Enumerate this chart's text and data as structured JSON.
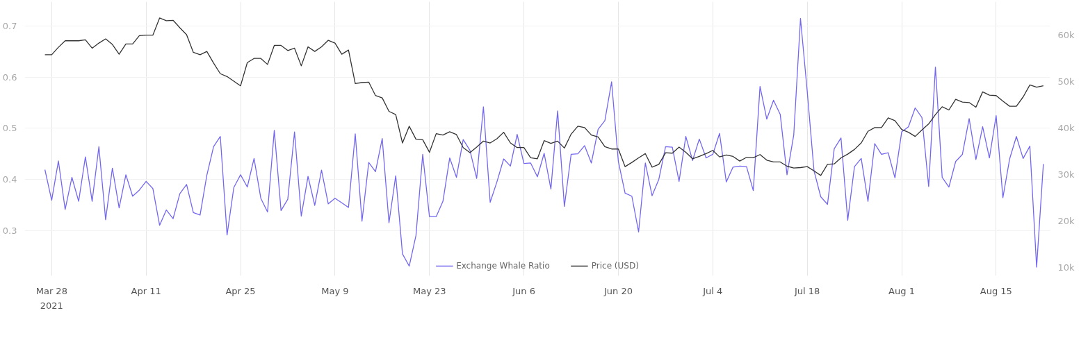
{
  "chart_data": {
    "type": "line",
    "x": [
      "2021-03-27",
      "2021-03-28",
      "2021-03-29",
      "2021-03-30",
      "2021-03-31",
      "2021-04-01",
      "2021-04-02",
      "2021-04-03",
      "2021-04-04",
      "2021-04-05",
      "2021-04-06",
      "2021-04-07",
      "2021-04-08",
      "2021-04-09",
      "2021-04-10",
      "2021-04-11",
      "2021-04-12",
      "2021-04-13",
      "2021-04-14",
      "2021-04-15",
      "2021-04-16",
      "2021-04-17",
      "2021-04-18",
      "2021-04-19",
      "2021-04-20",
      "2021-04-21",
      "2021-04-22",
      "2021-04-23",
      "2021-04-24",
      "2021-04-25",
      "2021-04-26",
      "2021-04-27",
      "2021-04-28",
      "2021-04-29",
      "2021-04-30",
      "2021-05-01",
      "2021-05-02",
      "2021-05-03",
      "2021-05-04",
      "2021-05-05",
      "2021-05-06",
      "2021-05-07",
      "2021-05-08",
      "2021-05-09",
      "2021-05-10",
      "2021-05-11",
      "2021-05-12",
      "2021-05-13",
      "2021-05-14",
      "2021-05-15",
      "2021-05-16",
      "2021-05-17",
      "2021-05-18",
      "2021-05-19",
      "2021-05-20",
      "2021-05-21",
      "2021-05-22",
      "2021-05-23",
      "2021-05-24",
      "2021-05-25",
      "2021-05-26",
      "2021-05-27",
      "2021-05-28",
      "2021-05-29",
      "2021-05-30",
      "2021-05-31",
      "2021-06-01",
      "2021-06-02",
      "2021-06-03",
      "2021-06-04",
      "2021-06-05",
      "2021-06-06",
      "2021-06-07",
      "2021-06-08",
      "2021-06-09",
      "2021-06-10",
      "2021-06-11",
      "2021-06-12",
      "2021-06-13",
      "2021-06-14",
      "2021-06-15",
      "2021-06-16",
      "2021-06-17",
      "2021-06-18",
      "2021-06-19",
      "2021-06-20",
      "2021-06-21",
      "2021-06-22",
      "2021-06-23",
      "2021-06-24",
      "2021-06-25",
      "2021-06-26",
      "2021-06-27",
      "2021-06-28",
      "2021-06-29",
      "2021-06-30",
      "2021-07-01",
      "2021-07-02",
      "2021-07-03",
      "2021-07-04",
      "2021-07-05",
      "2021-07-06",
      "2021-07-07",
      "2021-07-08",
      "2021-07-09",
      "2021-07-10",
      "2021-07-11",
      "2021-07-12",
      "2021-07-13",
      "2021-07-14",
      "2021-07-15",
      "2021-07-16",
      "2021-07-17",
      "2021-07-18",
      "2021-07-19",
      "2021-07-20",
      "2021-07-21",
      "2021-07-22",
      "2021-07-23",
      "2021-07-24",
      "2021-07-25",
      "2021-07-26",
      "2021-07-27",
      "2021-07-28",
      "2021-07-29",
      "2021-07-30",
      "2021-07-31",
      "2021-08-01",
      "2021-08-02",
      "2021-08-03",
      "2021-08-04",
      "2021-08-05",
      "2021-08-06",
      "2021-08-07",
      "2021-08-08",
      "2021-08-09",
      "2021-08-10",
      "2021-08-11",
      "2021-08-12",
      "2021-08-13",
      "2021-08-14",
      "2021-08-15",
      "2021-08-16",
      "2021-08-17",
      "2021-08-18",
      "2021-08-19",
      "2021-08-20",
      "2021-08-21",
      "2021-08-22"
    ],
    "series": [
      {
        "name": "Exchange Whale Ratio",
        "color": "#7367f0",
        "values": [
          0.419,
          0.359,
          0.436,
          0.341,
          0.404,
          0.357,
          0.444,
          0.357,
          0.464,
          0.321,
          0.422,
          0.344,
          0.409,
          0.367,
          0.379,
          0.396,
          0.382,
          0.31,
          0.34,
          0.323,
          0.372,
          0.39,
          0.335,
          0.33,
          0.408,
          0.464,
          0.484,
          0.291,
          0.384,
          0.409,
          0.385,
          0.441,
          0.363,
          0.336,
          0.496,
          0.339,
          0.361,
          0.493,
          0.328,
          0.406,
          0.349,
          0.418,
          0.352,
          0.363,
          0.354,
          0.345,
          0.489,
          0.318,
          0.433,
          0.415,
          0.48,
          0.315,
          0.407,
          0.254,
          0.23,
          0.29,
          0.449,
          0.327,
          0.327,
          0.357,
          0.442,
          0.404,
          0.478,
          0.457,
          0.402,
          0.542,
          0.355,
          0.395,
          0.44,
          0.426,
          0.488,
          0.431,
          0.432,
          0.405,
          0.451,
          0.381,
          0.534,
          0.347,
          0.449,
          0.45,
          0.466,
          0.432,
          0.498,
          0.515,
          0.591,
          0.435,
          0.373,
          0.367,
          0.297,
          0.432,
          0.368,
          0.4,
          0.464,
          0.463,
          0.396,
          0.484,
          0.437,
          0.479,
          0.442,
          0.449,
          0.49,
          0.395,
          0.424,
          0.426,
          0.425,
          0.378,
          0.582,
          0.518,
          0.555,
          0.527,
          0.409,
          0.487,
          0.715,
          0.572,
          0.417,
          0.366,
          0.351,
          0.46,
          0.481,
          0.32,
          0.425,
          0.441,
          0.357,
          0.47,
          0.449,
          0.452,
          0.403,
          0.493,
          0.503,
          0.54,
          0.521,
          0.386,
          0.62,
          0.404,
          0.385,
          0.435,
          0.449,
          0.519,
          0.439,
          0.503,
          0.442,
          0.525,
          0.364,
          0.44,
          0.484,
          0.441,
          0.465,
          0.228,
          0.43
        ]
      },
      {
        "name": "Price (USD)",
        "color": "#333333",
        "axis": "y2",
        "values": [
          55800,
          55800,
          57400,
          58800,
          58800,
          58800,
          59000,
          57200,
          58300,
          59200,
          58000,
          55900,
          58100,
          58100,
          59900,
          60000,
          60000,
          63700,
          63100,
          63200,
          61600,
          60100,
          56300,
          55800,
          56500,
          54000,
          51700,
          51100,
          50100,
          49100,
          54100,
          55000,
          55000,
          53700,
          57800,
          57800,
          56700,
          57200,
          53400,
          57500,
          56500,
          57500,
          58900,
          58300,
          55900,
          56800,
          49600,
          49800,
          49900,
          47000,
          46500,
          43600,
          42900,
          36800,
          40400,
          37600,
          37500,
          34800,
          38800,
          38500,
          39200,
          38600,
          35800,
          34700,
          35900,
          37200,
          36800,
          37700,
          39100,
          36800,
          35800,
          35800,
          33600,
          33400,
          37300,
          36700,
          37200,
          35700,
          38700,
          40400,
          40100,
          38500,
          38100,
          36000,
          35500,
          35500,
          31700,
          32600,
          33600,
          34500,
          31600,
          32200,
          34700,
          34600,
          35900,
          34800,
          33400,
          33900,
          34500,
          35200,
          33800,
          34200,
          33900,
          32900,
          33700,
          33600,
          34300,
          33100,
          32700,
          32700,
          31800,
          31400,
          31500,
          31700,
          30800,
          29800,
          32200,
          32300,
          33600,
          34400,
          35400,
          36800,
          39300,
          40100,
          40100,
          42200,
          41600,
          39700,
          39100,
          38200,
          39600,
          40900,
          42900,
          44600,
          43900,
          46200,
          45600,
          45500,
          44500,
          47800,
          47100,
          47000,
          45800,
          44700,
          44700,
          46700,
          49300,
          48800,
          49100
        ]
      }
    ],
    "xlim": [
      "2021-03-24",
      "2021-08-23"
    ],
    "annotations": [
      "2021"
    ],
    "xticks": [
      {
        "value": "2021-03-28",
        "label": "Mar 28"
      },
      {
        "value": "2021-04-11",
        "label": "Apr 11"
      },
      {
        "value": "2021-04-25",
        "label": "Apr 25"
      },
      {
        "value": "2021-05-09",
        "label": "May 9"
      },
      {
        "value": "2021-05-23",
        "label": "May 23"
      },
      {
        "value": "2021-06-06",
        "label": "Jun 6"
      },
      {
        "value": "2021-06-20",
        "label": "Jun 20"
      },
      {
        "value": "2021-07-04",
        "label": "Jul 4"
      },
      {
        "value": "2021-07-18",
        "label": "Jul 18"
      },
      {
        "value": "2021-08-01",
        "label": "Aug 1"
      },
      {
        "value": "2021-08-15",
        "label": "Aug 15"
      }
    ],
    "ylim": [
      0.211,
      0.748
    ],
    "yticks": [
      0.3,
      0.4,
      0.5,
      0.6,
      0.7
    ],
    "y2lim": [
      8200,
      67200
    ],
    "y2ticks": [
      {
        "value": 10000,
        "label": "10k"
      },
      {
        "value": 20000,
        "label": "20k"
      },
      {
        "value": 30000,
        "label": "30k"
      },
      {
        "value": 40000,
        "label": "40k"
      },
      {
        "value": 50000,
        "label": "50k"
      },
      {
        "value": 60000,
        "label": "60k"
      }
    ],
    "grid": true,
    "legend": "bottom",
    "line_style": "solid"
  }
}
